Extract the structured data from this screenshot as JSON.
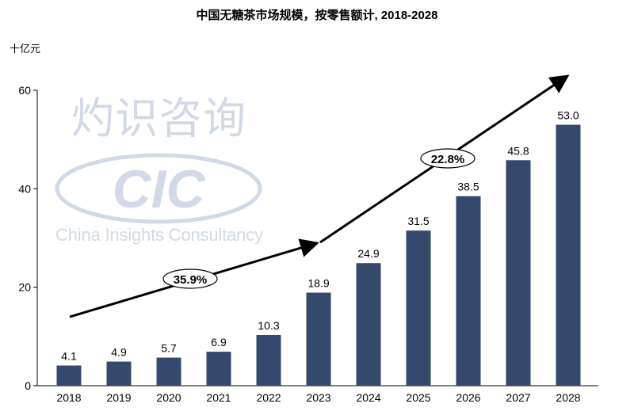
{
  "chart_data": {
    "type": "bar",
    "title": "中国无糖茶市场规模，按零售额计, 2018-2028",
    "ylabel": "十亿元",
    "xlabel": "",
    "ylim": [
      0,
      60
    ],
    "yticks": [
      0,
      20,
      40,
      60
    ],
    "grid": false,
    "categories": [
      "2018",
      "2019",
      "2020",
      "2021",
      "2022",
      "2023",
      "2024",
      "2025",
      "2026",
      "2027",
      "2028"
    ],
    "values": [
      4.1,
      4.9,
      5.7,
      6.9,
      10.3,
      18.9,
      24.9,
      31.5,
      38.5,
      45.8,
      53.0
    ],
    "value_labels": [
      "4.1",
      "4.9",
      "5.7",
      "6.9",
      "10.3",
      "18.9",
      "24.9",
      "31.5",
      "38.5",
      "45.8",
      "53.0"
    ],
    "bar_color": "#34496c",
    "annotations": [
      {
        "label": "35.9%",
        "from": "2018",
        "to": "2023",
        "type": "CAGR arrow"
      },
      {
        "label": "22.8%",
        "from": "2023",
        "to": "2028",
        "type": "CAGR arrow"
      }
    ]
  },
  "watermark": {
    "logo": "CIC",
    "name_cn": "灼识咨询",
    "name_en": "China Insights Consultancy",
    "color": "#c9d3e2"
  }
}
